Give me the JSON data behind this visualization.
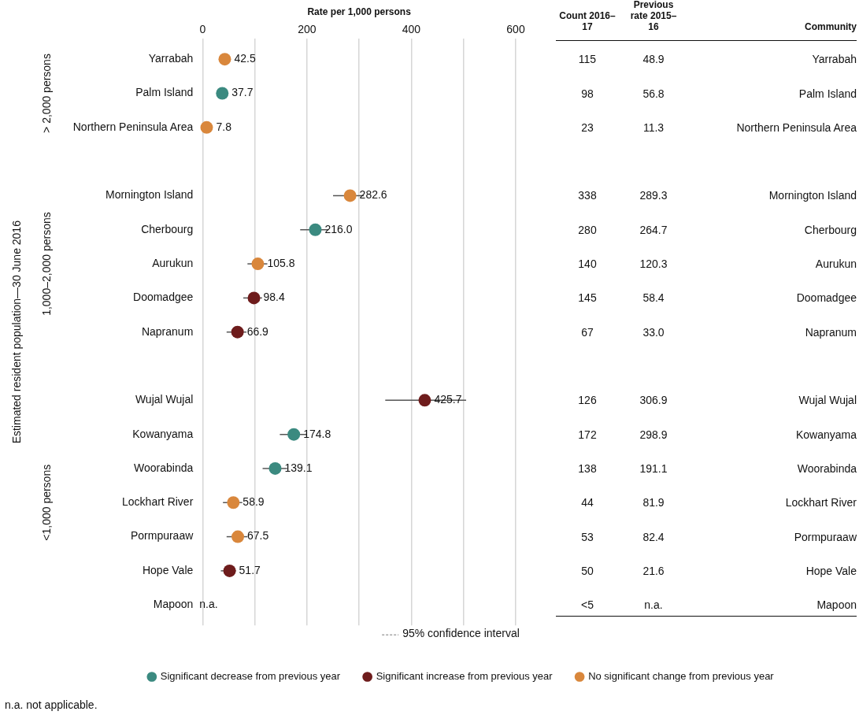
{
  "chart_data": [
    {
      "type": "scatter",
      "xlabel": "Rate per 1,000 persons",
      "ylabel": "Estimated resident population—30 June 2016",
      "categories": [
        "Yarrabah",
        "Palm Island",
        "Northern Peninsula Area",
        null,
        "Mornington Island",
        "Cherbourg",
        "Aurukun",
        "Doomadgee",
        "Napranum",
        null,
        "Wujal Wujal",
        "Kowanyama",
        "Woorabinda",
        "Lockhart River",
        "Pormpuraaw",
        "Hope Vale",
        "Mapoon"
      ],
      "series": [
        {
          "name": "Significant decrease from previous year",
          "color": "#3b8a80",
          "values": [
            null,
            37.7,
            null,
            null,
            null,
            216.0,
            null,
            null,
            null,
            null,
            null,
            174.8,
            139.1,
            null,
            null,
            null,
            null
          ],
          "value_labels": [
            null,
            "37.7",
            null,
            null,
            null,
            "216.0",
            null,
            null,
            null,
            null,
            null,
            "174.8",
            "139.1",
            null,
            null,
            null,
            null
          ],
          "errors": [
            null,
            null,
            null,
            null,
            null,
            [
              187,
              241
            ],
            null,
            null,
            null,
            null,
            null,
            [
              148,
              200
            ],
            [
              115,
              162
            ],
            null,
            null,
            null,
            null
          ]
        },
        {
          "name": "Significant increase from previous year",
          "color": "#6e1c1c",
          "values": [
            null,
            null,
            null,
            null,
            null,
            null,
            null,
            98.4,
            66.9,
            null,
            425.7,
            null,
            null,
            null,
            null,
            51.7,
            null
          ],
          "value_labels": [
            null,
            null,
            null,
            null,
            null,
            null,
            null,
            "98.4",
            "66.9",
            null,
            "425.7",
            null,
            null,
            null,
            null,
            "51.7",
            null
          ],
          "errors": [
            null,
            null,
            null,
            null,
            null,
            null,
            null,
            [
              78,
              114
            ],
            [
              46,
              84
            ],
            null,
            [
              350,
              505
            ],
            null,
            null,
            null,
            null,
            [
              35,
              64
            ],
            null
          ]
        },
        {
          "name": "No significant change from previous year",
          "color": "#d9873c",
          "values": [
            42.5,
            null,
            7.8,
            null,
            282.6,
            null,
            105.8,
            null,
            null,
            null,
            null,
            null,
            null,
            58.9,
            67.5,
            null,
            null
          ],
          "value_labels": [
            "42.5",
            null,
            "7.8",
            null,
            "282.6",
            null,
            "105.8",
            null,
            null,
            null,
            null,
            null,
            null,
            "58.9",
            "67.5",
            null,
            null
          ],
          "errors": [
            null,
            null,
            null,
            null,
            [
              250,
              309
            ],
            null,
            [
              86,
              124
            ],
            null,
            null,
            null,
            null,
            null,
            null,
            [
              39,
              76
            ],
            [
              46,
              86
            ],
            null,
            null
          ]
        }
      ],
      "xlim": [
        0,
        600
      ],
      "xticks": [
        0,
        {
          "value": 100,
          "label": null
        },
        200,
        {
          "value": 300,
          "label": null
        },
        400,
        {
          "value": 500,
          "label": null
        },
        600
      ],
      "orientation": "horizontal",
      "grid": "x",
      "legend": "bottom",
      "marker": "circle",
      "annotations": [
        "> 2,000 persons",
        "1,000–2,000 persons",
        "<1,000 persons",
        "95% confidence interval",
        "n.a.",
        "n.a. not applicable."
      ]
    },
    {
      "type": "other",
      "ylabel": "Community",
      "categories": [
        "Yarrabah",
        "Palm Island",
        "Northern Peninsula Area",
        null,
        "Mornington Island",
        "Cherbourg",
        "Aurukun",
        "Doomadgee",
        "Napranum",
        null,
        "Wujal Wujal",
        "Kowanyama",
        "Woorabinda",
        "Lockhart River",
        "Pormpuraaw",
        "Hope Vale",
        "Mapoon"
      ],
      "series": [
        {
          "name": "Count 2016–17",
          "values": [
            115,
            98,
            23,
            null,
            338,
            280,
            140,
            145,
            67,
            null,
            126,
            172,
            138,
            44,
            53,
            50,
            null
          ],
          "value_labels": [
            "115",
            "98",
            "23",
            null,
            "338",
            "280",
            "140",
            "145",
            "67",
            null,
            "126",
            "172",
            "138",
            "44",
            "53",
            "50",
            "<5"
          ]
        },
        {
          "name": "Previous rate 2015–16",
          "values": [
            48.9,
            56.8,
            11.3,
            null,
            289.3,
            264.7,
            120.3,
            58.4,
            33.0,
            null,
            306.9,
            298.9,
            191.1,
            81.9,
            82.4,
            21.6,
            null
          ],
          "value_labels": [
            "48.9",
            "56.8",
            "11.3",
            null,
            "289.3",
            "264.7",
            "120.3",
            "58.4",
            "33.0",
            null,
            "306.9",
            "298.9",
            "191.1",
            "81.9",
            "82.4",
            "21.6",
            "n.a."
          ]
        }
      ]
    }
  ]
}
